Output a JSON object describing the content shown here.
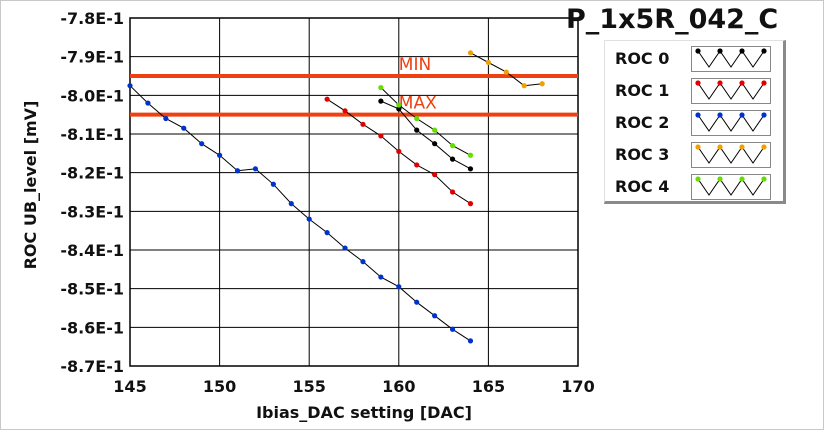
{
  "chart_data": {
    "type": "line",
    "title": "P_1x5R_042_C",
    "xlabel": "Ibias_DAC setting [DAC]",
    "ylabel": "ROC UB_level [mV]",
    "xlim": [
      145,
      170
    ],
    "ylim": [
      -0.87,
      -0.78
    ],
    "x_ticks": [
      145,
      150,
      155,
      160,
      165,
      170
    ],
    "x_tick_labels": [
      "145",
      "150",
      "155",
      "160",
      "165",
      "170"
    ],
    "y_ticks": [
      -0.78,
      -0.79,
      -0.8,
      -0.81,
      -0.82,
      -0.83,
      -0.84,
      -0.85,
      -0.86,
      -0.87
    ],
    "y_tick_labels": [
      "-7.8E-1",
      "-7.9E-1",
      "-8.0E-1",
      "-8.1E-1",
      "-8.2E-1",
      "-8.3E-1",
      "-8.4E-1",
      "-8.5E-1",
      "-8.6E-1",
      "-8.7E-1"
    ],
    "grid": true,
    "legend_position": "top-right",
    "limit_lines": [
      {
        "label": "MIN",
        "y": -0.795,
        "color": "#ee4010"
      },
      {
        "label": "MAX",
        "y": -0.805,
        "color": "#ee4010"
      }
    ],
    "series": [
      {
        "name": "ROC 0",
        "color": "#000000",
        "x": [
          159,
          160,
          161,
          162,
          163,
          164
        ],
        "y": [
          -0.8015,
          -0.8035,
          -0.809,
          -0.8125,
          -0.8165,
          -0.819
        ]
      },
      {
        "name": "ROC 1",
        "color": "#e00000",
        "x": [
          156,
          157,
          158,
          159,
          160,
          161,
          162,
          163,
          164
        ],
        "y": [
          -0.801,
          -0.804,
          -0.8075,
          -0.8105,
          -0.8145,
          -0.818,
          -0.8205,
          -0.825,
          -0.828
        ]
      },
      {
        "name": "ROC 2",
        "color": "#0033cc",
        "x": [
          145,
          146,
          147,
          148,
          149,
          150,
          151,
          152,
          153,
          154,
          155,
          156,
          157,
          158,
          159,
          160,
          161,
          162,
          163,
          164
        ],
        "y": [
          -0.7975,
          -0.802,
          -0.806,
          -0.8085,
          -0.8125,
          -0.8155,
          -0.8195,
          -0.819,
          -0.823,
          -0.828,
          -0.832,
          -0.8355,
          -0.8395,
          -0.843,
          -0.847,
          -0.8495,
          -0.8535,
          -0.857,
          -0.8605,
          -0.8635
        ]
      },
      {
        "name": "ROC 3",
        "color": "#f0a000",
        "x": [
          164,
          165,
          166,
          167,
          168
        ],
        "y": [
          -0.789,
          -0.7915,
          -0.794,
          -0.7975,
          -0.797
        ]
      },
      {
        "name": "ROC 4",
        "color": "#66dd00",
        "x": [
          159,
          160,
          161,
          162,
          163,
          164
        ],
        "y": [
          -0.798,
          -0.8025,
          -0.806,
          -0.809,
          -0.813,
          -0.8155
        ]
      }
    ]
  }
}
